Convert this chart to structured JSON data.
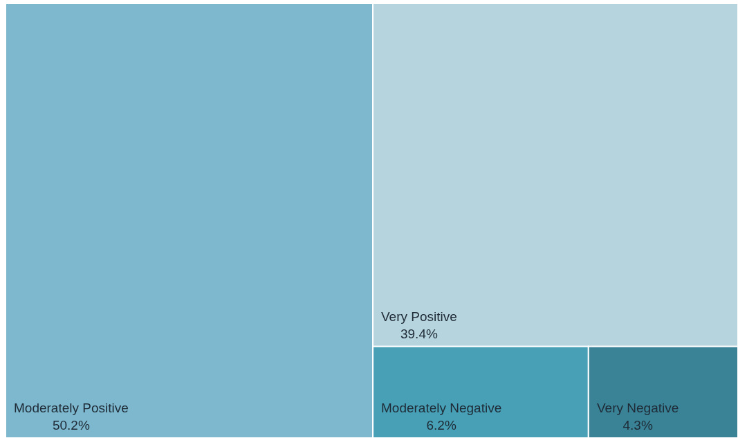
{
  "chart_data": {
    "type": "other",
    "categories": [
      "Moderately Positive",
      "Very Positive",
      "Moderately Negative",
      "Very Negative"
    ],
    "values": [
      50.2,
      39.4,
      6.2,
      4.3
    ],
    "value_labels": [
      "50.2%",
      "39.4%",
      "6.2%",
      "4.3%"
    ],
    "colors": [
      "#7db8ce",
      "#b6d4de",
      "#48a0b7",
      "#3a8397"
    ]
  }
}
